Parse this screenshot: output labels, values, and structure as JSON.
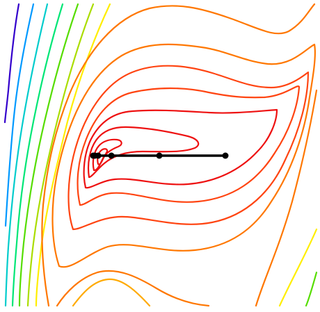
{
  "chart_data": {
    "type": "contour",
    "title": "",
    "xlabel": "",
    "ylabel": "",
    "grid": false,
    "legend": "none",
    "axes_visible": false,
    "colormap": [
      "#3300cc",
      "#0099ff",
      "#00cccc",
      "#00e676",
      "#55dd00",
      "#aadd00",
      "#ffee00",
      "#ffaa00",
      "#ff7700",
      "#ff4411",
      "#ee1111"
    ],
    "descent_path": {
      "color": "#000000",
      "x": [
        4.0,
        2.0,
        0.55,
        0.15,
        0.05,
        0.0
      ],
      "y": [
        0.0,
        0.0,
        0.0,
        0.0,
        0.0,
        0.0
      ]
    }
  }
}
